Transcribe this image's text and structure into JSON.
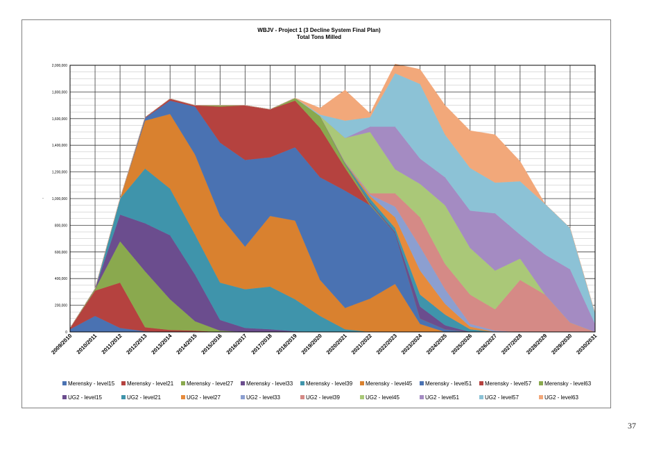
{
  "page_number": "37",
  "chart_data": {
    "type": "area",
    "stacked": true,
    "title": "WBJV - Project 1  (3 Decline System Final Plan)",
    "subtitle": "Total Tons Milled",
    "ylabel": "-",
    "ylim": [
      0,
      2000000
    ],
    "yticks": [
      0,
      200000,
      400000,
      600000,
      800000,
      1000000,
      1200000,
      1400000,
      1600000,
      1800000,
      2000000
    ],
    "ytick_labels": [
      "0",
      "200,000",
      "400,000",
      "600,000",
      "800,000",
      "1,000,000",
      "1,200,000",
      "1,400,000",
      "1,600,000",
      "1,800,000",
      "2,000,000"
    ],
    "grid": true,
    "legend_position": "bottom",
    "categories": [
      "2009/2010",
      "2010/2011",
      "2011/2012",
      "2012/2013",
      "2013/2014",
      "2014/2015",
      "2015/2016",
      "2016/2017",
      "2017/2018",
      "2018/2019",
      "2019/2020",
      "2020/2021",
      "2021/2022",
      "2022/2023",
      "2023/2024",
      "2024/2025",
      "2025/2026",
      "2026/2027",
      "2027/2028",
      "2028/2029",
      "2029/2030",
      "2030/2031"
    ],
    "series": [
      {
        "name": "Merensky  - level15",
        "color": "#4a72b2",
        "values": [
          20000,
          120000,
          30000,
          5000,
          0,
          0,
          0,
          0,
          0,
          0,
          0,
          0,
          0,
          0,
          0,
          0,
          0,
          0,
          0,
          0,
          0,
          0
        ]
      },
      {
        "name": "Merensky  - level21",
        "color": "#b5423f",
        "values": [
          10000,
          190000,
          340000,
          30000,
          15000,
          10000,
          0,
          0,
          0,
          0,
          0,
          0,
          0,
          0,
          0,
          0,
          0,
          0,
          0,
          0,
          0,
          0
        ]
      },
      {
        "name": "Merensky  - level27",
        "color": "#8aa94e",
        "values": [
          0,
          10000,
          310000,
          420000,
          230000,
          70000,
          10000,
          0,
          0,
          0,
          0,
          0,
          0,
          0,
          0,
          0,
          0,
          0,
          0,
          0,
          0,
          0
        ]
      },
      {
        "name": "Merensky  - level33",
        "color": "#6b4d8e",
        "values": [
          0,
          5000,
          200000,
          360000,
          480000,
          350000,
          80000,
          30000,
          20000,
          5000,
          0,
          0,
          0,
          0,
          0,
          0,
          0,
          0,
          0,
          0,
          0,
          0
        ]
      },
      {
        "name": "Merensky  - level39",
        "color": "#3f94ab",
        "values": [
          0,
          0,
          120000,
          410000,
          350000,
          300000,
          280000,
          290000,
          320000,
          240000,
          120000,
          20000,
          0,
          0,
          0,
          0,
          0,
          0,
          0,
          0,
          0,
          0
        ]
      },
      {
        "name": "Merensky  - level45",
        "color": "#d9812f",
        "values": [
          0,
          0,
          0,
          360000,
          560000,
          600000,
          500000,
          320000,
          530000,
          590000,
          270000,
          160000,
          250000,
          360000,
          60000,
          0,
          0,
          0,
          0,
          0,
          0,
          0
        ]
      },
      {
        "name": "Merensky  - level51",
        "color": "#4a72b2",
        "values": [
          0,
          0,
          0,
          20000,
          100000,
          360000,
          550000,
          650000,
          440000,
          550000,
          770000,
          880000,
          700000,
          380000,
          40000,
          20000,
          0,
          0,
          0,
          0,
          0,
          0
        ]
      },
      {
        "name": "Merensky  - level57",
        "color": "#b5423f",
        "values": [
          0,
          0,
          0,
          5000,
          15000,
          10000,
          270000,
          410000,
          360000,
          350000,
          370000,
          170000,
          0,
          0,
          0,
          0,
          0,
          0,
          0,
          0,
          0,
          0
        ]
      },
      {
        "name": "Merensky  - level63",
        "color": "#8aa94e",
        "values": [
          0,
          0,
          0,
          0,
          0,
          0,
          10000,
          0,
          0,
          20000,
          90000,
          30000,
          10000,
          0,
          0,
          0,
          0,
          0,
          0,
          0,
          0,
          0
        ]
      },
      {
        "name": "UG2 - level15",
        "color": "#6b4d8e",
        "values": [
          0,
          0,
          0,
          0,
          0,
          0,
          0,
          0,
          0,
          0,
          0,
          0,
          10000,
          10000,
          90000,
          30000,
          0,
          0,
          0,
          0,
          0,
          0
        ]
      },
      {
        "name": "UG2 - level21",
        "color": "#3f94ab",
        "values": [
          0,
          0,
          0,
          0,
          0,
          0,
          0,
          0,
          0,
          0,
          0,
          5000,
          30000,
          30000,
          90000,
          80000,
          20000,
          0,
          0,
          0,
          0,
          0
        ]
      },
      {
        "name": "UG2 - level27",
        "color": "#e68b3c",
        "values": [
          0,
          0,
          0,
          0,
          0,
          0,
          0,
          0,
          0,
          0,
          0,
          5000,
          20000,
          80000,
          180000,
          80000,
          20000,
          0,
          0,
          0,
          0,
          0
        ]
      },
      {
        "name": "UG2 - level33",
        "color": "#8c9fd0",
        "values": [
          0,
          0,
          0,
          0,
          0,
          0,
          0,
          0,
          0,
          0,
          0,
          5000,
          10000,
          80000,
          180000,
          110000,
          20000,
          10000,
          0,
          0,
          0,
          0
        ]
      },
      {
        "name": "UG2 - level39",
        "color": "#d58a86",
        "values": [
          0,
          0,
          0,
          0,
          0,
          0,
          0,
          0,
          0,
          0,
          0,
          0,
          10000,
          100000,
          220000,
          190000,
          220000,
          160000,
          390000,
          280000,
          70000,
          0
        ]
      },
      {
        "name": "UG2 - level45",
        "color": "#aac878",
        "values": [
          0,
          0,
          0,
          0,
          0,
          0,
          0,
          0,
          0,
          0,
          0,
          180000,
          460000,
          180000,
          250000,
          440000,
          350000,
          290000,
          160000,
          0,
          0,
          0
        ]
      },
      {
        "name": "UG2 - level51",
        "color": "#a48bc2",
        "values": [
          0,
          0,
          0,
          0,
          0,
          0,
          0,
          0,
          0,
          0,
          0,
          0,
          40000,
          320000,
          190000,
          210000,
          280000,
          430000,
          180000,
          300000,
          400000,
          60000
        ]
      },
      {
        "name": "UG2 - level57",
        "color": "#8cc2d6",
        "values": [
          0,
          0,
          0,
          0,
          0,
          0,
          0,
          0,
          0,
          0,
          10000,
          130000,
          70000,
          400000,
          560000,
          320000,
          320000,
          230000,
          400000,
          380000,
          310000,
          80000
        ]
      },
      {
        "name": "UG2 - level63",
        "color": "#f2a87a",
        "values": [
          0,
          0,
          0,
          0,
          0,
          0,
          0,
          0,
          0,
          0,
          50000,
          230000,
          30000,
          70000,
          110000,
          220000,
          280000,
          360000,
          150000,
          0,
          0,
          0
        ]
      }
    ]
  }
}
